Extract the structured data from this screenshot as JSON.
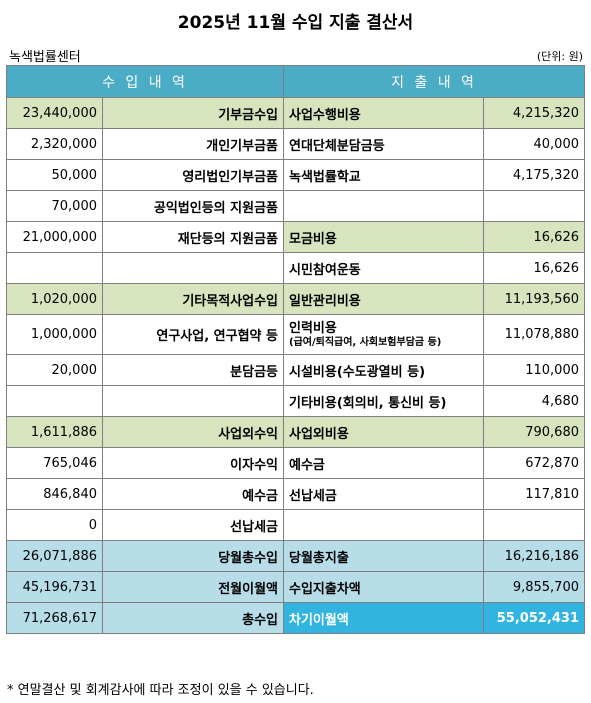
{
  "title": "2025년 11월 수입 지출 결산서",
  "org": "녹색법률센터",
  "unit": "(단위: 원)",
  "headers": {
    "income": "수 입 내 역",
    "expense": "지 출 내 역"
  },
  "rows": [
    {
      "inc_amt": "23,440,000",
      "inc_label": "기부금수입",
      "exp_label": "사업수행비용",
      "exp_amt": "4,215,320"
    },
    {
      "inc_amt": "2,320,000",
      "inc_label": "개인기부금품",
      "exp_label": "연대단체분담금등",
      "exp_amt": "40,000"
    },
    {
      "inc_amt": "50,000",
      "inc_label": "영리법인기부금품",
      "exp_label": "녹색법률학교",
      "exp_amt": "4,175,320"
    },
    {
      "inc_amt": "70,000",
      "inc_label": "공익법인등의 지원금품",
      "exp_label": "",
      "exp_amt": ""
    },
    {
      "inc_amt": "21,000,000",
      "inc_label": "재단등의 지원금품",
      "exp_label": "모금비용",
      "exp_amt": "16,626"
    },
    {
      "inc_amt": "",
      "inc_label": "",
      "exp_label": "시민참여운동",
      "exp_amt": "16,626"
    },
    {
      "inc_amt": "1,020,000",
      "inc_label": "기타목적사업수입",
      "exp_label": "일반관리비용",
      "exp_amt": "11,193,560"
    },
    {
      "inc_amt": "1,000,000",
      "inc_label": "연구사업, 연구협약 등",
      "exp_label": "인력비용",
      "exp_sub": "(급여/퇴직급여, 사회보험부담금 등)",
      "exp_amt": "11,078,880"
    },
    {
      "inc_amt": "20,000",
      "inc_label": "분담금등",
      "exp_label": "시설비용(수도광열비 등)",
      "exp_amt": "110,000"
    },
    {
      "inc_amt": "",
      "inc_label": "",
      "exp_label": "기타비용(회의비, 통신비 등)",
      "exp_amt": "4,680"
    },
    {
      "inc_amt": "1,611,886",
      "inc_label": "사업외수익",
      "exp_label": "사업외비용",
      "exp_amt": "790,680"
    },
    {
      "inc_amt": "765,046",
      "inc_label": "이자수익",
      "exp_label": "예수금",
      "exp_amt": "672,870"
    },
    {
      "inc_amt": "846,840",
      "inc_label": "예수금",
      "exp_label": "선납세금",
      "exp_amt": "117,810"
    },
    {
      "inc_amt": "0",
      "inc_label": "선납세금",
      "exp_label": "",
      "exp_amt": ""
    },
    {
      "inc_amt": "26,071,886",
      "inc_label": "당월총수입",
      "exp_label": "당월총지출",
      "exp_amt": "16,216,186"
    },
    {
      "inc_amt": "45,196,731",
      "inc_label": "전월이월액",
      "exp_label": "수입지출차액",
      "exp_amt": "9,855,700"
    },
    {
      "inc_amt": "71,268,617",
      "inc_label": "총수입",
      "exp_label": "차기이월액",
      "exp_amt": "55,052,431"
    }
  ],
  "footnote": "* 연말결산 및 회계감사에 따라 조정이 있을 수 있습니다."
}
